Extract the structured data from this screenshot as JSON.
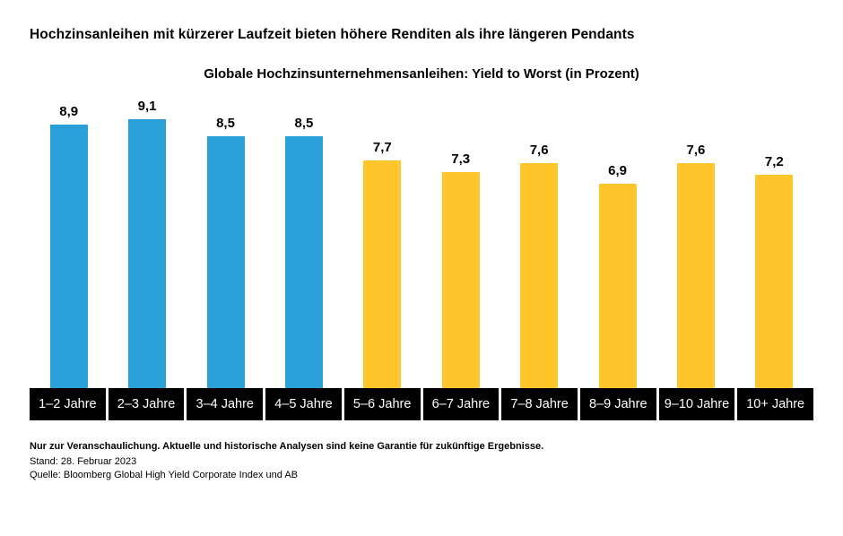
{
  "title": "Hochzinsanleihen mit kürzerer Laufzeit bieten höhere Renditen als ihre längeren Pendants",
  "subtitle": "Globale Hochzinsunternehmensanleihen: Yield to Worst (in Prozent)",
  "chart_data": {
    "type": "bar",
    "title": "Globale Hochzinsunternehmensanleihen: Yield to Worst (in Prozent)",
    "categories": [
      "1–2 Jahre",
      "2–3 Jahre",
      "3–4 Jahre",
      "4–5 Jahre",
      "5–6 Jahre",
      "6–7 Jahre",
      "7–8 Jahre",
      "8–9 Jahre",
      "9–10 Jahre",
      "10+ Jahre"
    ],
    "values": [
      8.9,
      9.1,
      8.5,
      8.5,
      7.7,
      7.3,
      7.6,
      6.9,
      7.6,
      7.2
    ],
    "value_labels": [
      "8,9",
      "9,1",
      "8,5",
      "8,5",
      "7,7",
      "7,3",
      "7,6",
      "6,9",
      "7,6",
      "7,2"
    ],
    "bar_colors": [
      "#2B9FD8",
      "#2B9FD8",
      "#2B9FD8",
      "#2B9FD8",
      "#FFC62B",
      "#FFC62B",
      "#FFC62B",
      "#FFC62B",
      "#FFC62B",
      "#FFC62B"
    ],
    "colors": {
      "blue": "#2B9FD8",
      "yellow": "#FFC62B",
      "axis_band": "#000000"
    },
    "xlabel": "",
    "ylabel": "",
    "ylim": [
      0,
      9.5
    ],
    "grid": false,
    "legend": false
  },
  "footnotes": {
    "disclaimer": "Nur zur Veranschaulichung. Aktuelle und historische Analysen sind keine Garantie für zukünftige Ergebnisse.",
    "as_of": "Stand: 28. Februar 2023",
    "source": "Quelle: Bloomberg Global High Yield Corporate Index und AB"
  }
}
